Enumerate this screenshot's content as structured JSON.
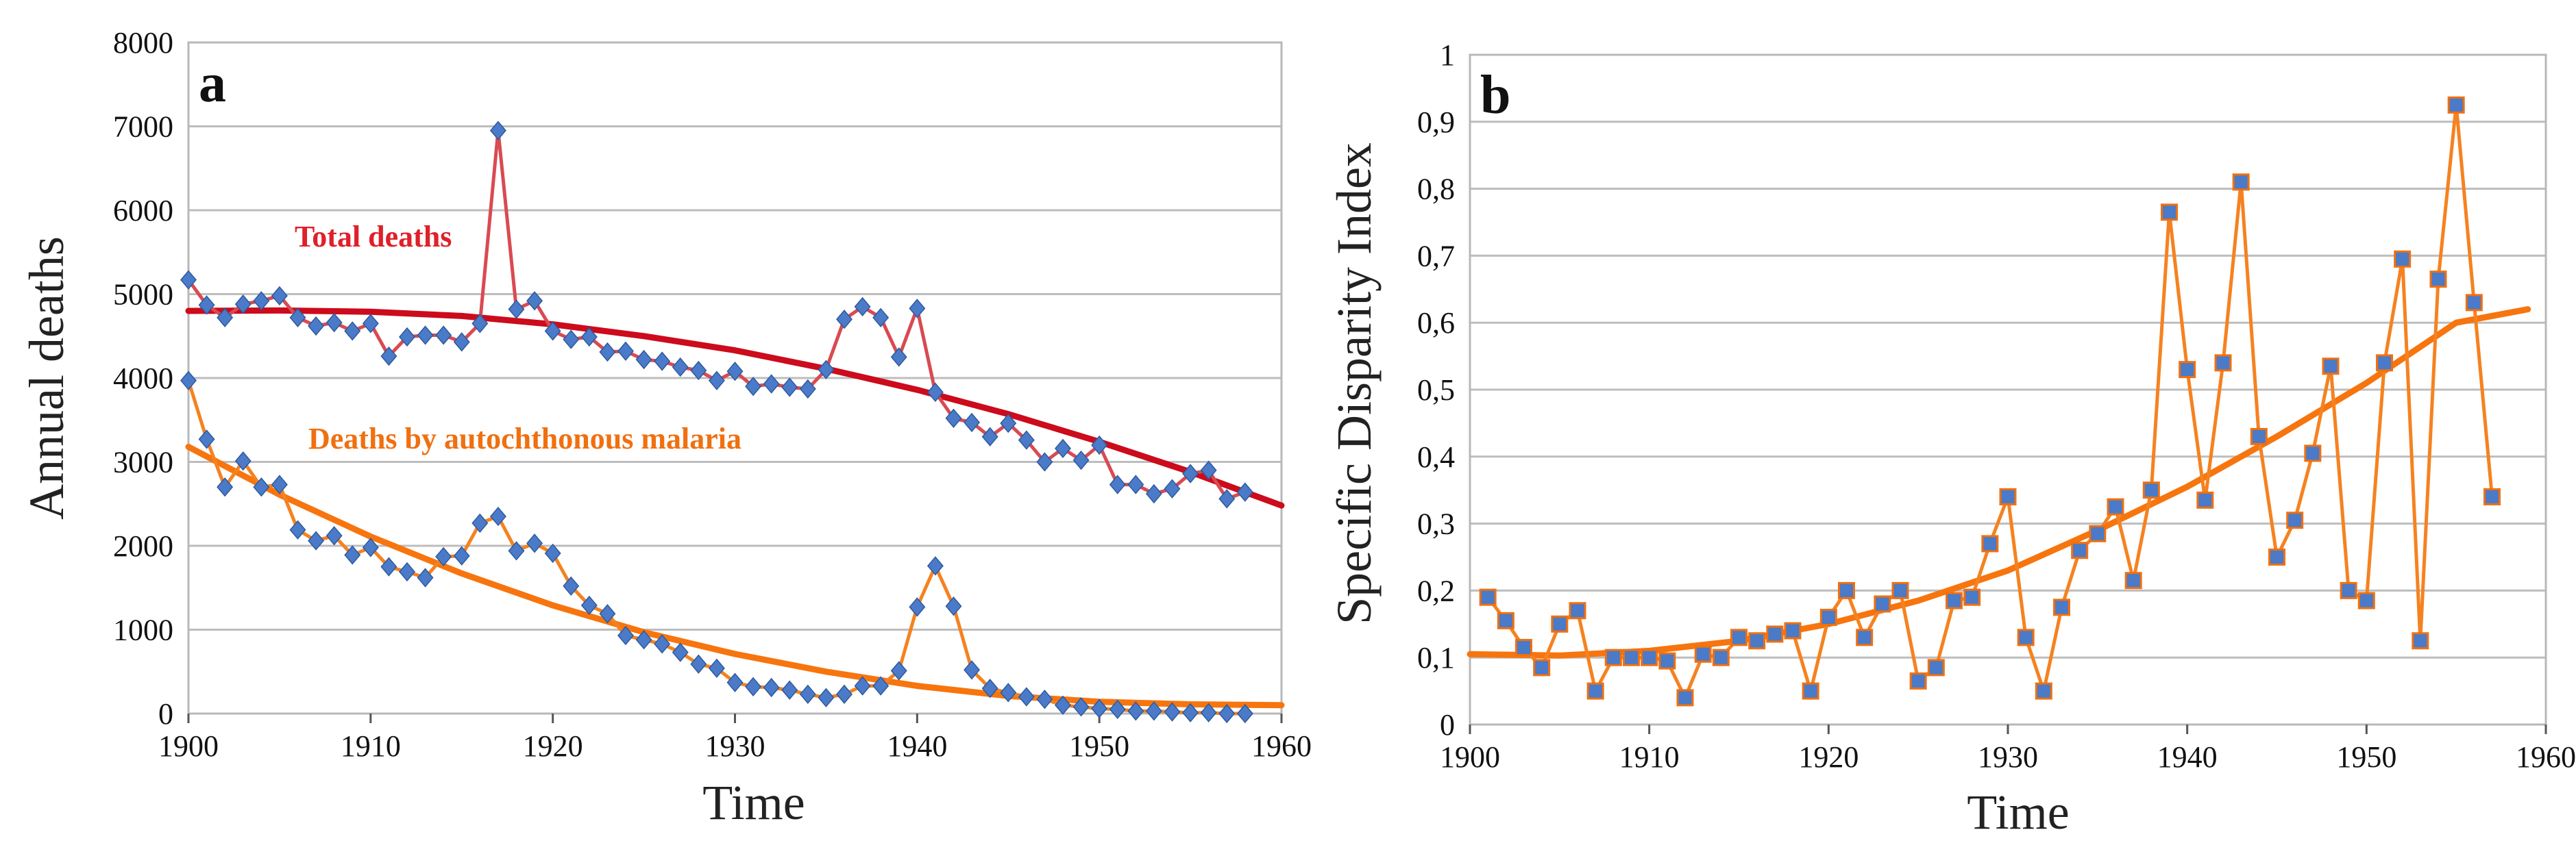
{
  "chart_data": [
    {
      "type": "line",
      "panel_label": "a",
      "xlabel": "Time",
      "ylabel": "Annual deaths",
      "xlim": [
        1900,
        1960
      ],
      "ylim": [
        0,
        8000
      ],
      "xticks": [
        "1900",
        "1910",
        "1920",
        "1930",
        "1940",
        "1950",
        "1960"
      ],
      "yticks": [
        "0",
        "1000",
        "2000",
        "3000",
        "4000",
        "5000",
        "6000",
        "7000",
        "8000"
      ],
      "grid": true,
      "annotations": [
        {
          "text": "Total deaths",
          "color": "#e0202a"
        },
        {
          "text": "Deaths by autochthonous malaria",
          "color": "#f07010"
        }
      ],
      "series": [
        {
          "name": "Total deaths",
          "color": "#d94a52",
          "marker_color": "#4a7ac8",
          "x": [
            1900,
            1901,
            1902,
            1903,
            1904,
            1905,
            1906,
            1907,
            1908,
            1909,
            1910,
            1911,
            1912,
            1913,
            1914,
            1915,
            1916,
            1917,
            1918,
            1919,
            1920,
            1921,
            1922,
            1923,
            1924,
            1925,
            1926,
            1927,
            1928,
            1929,
            1930,
            1931,
            1932,
            1933,
            1934,
            1935,
            1936,
            1937,
            1938,
            1939,
            1940,
            1941,
            1942,
            1943,
            1944,
            1945,
            1946,
            1947,
            1948,
            1949,
            1950,
            1951,
            1952,
            1953,
            1954,
            1955,
            1956,
            1957,
            1958
          ],
          "y": [
            5170,
            4870,
            4720,
            4880,
            4920,
            4980,
            4720,
            4620,
            4660,
            4560,
            4650,
            4260,
            4490,
            4510,
            4510,
            4430,
            4650,
            6950,
            4820,
            4920,
            4560,
            4460,
            4490,
            4310,
            4320,
            4220,
            4200,
            4130,
            4090,
            3970,
            4080,
            3900,
            3930,
            3890,
            3870,
            4100,
            4700,
            4850,
            4720,
            4250,
            4830,
            3830,
            3520,
            3470,
            3300,
            3460,
            3260,
            3000,
            3160,
            3020,
            3200,
            2730,
            2730,
            2620,
            2680,
            2860,
            2900,
            2560,
            2640
          ]
        },
        {
          "name": "Total deaths trend",
          "color": "#cc0b1c",
          "x": [
            1900,
            1905,
            1910,
            1915,
            1920,
            1925,
            1930,
            1935,
            1940,
            1945,
            1950,
            1955,
            1960
          ],
          "y": [
            4800,
            4805,
            4790,
            4740,
            4640,
            4500,
            4330,
            4110,
            3860,
            3570,
            3240,
            2880,
            2480
          ]
        },
        {
          "name": "Deaths by autochthonous malaria",
          "color": "#f58220",
          "marker_color": "#4a7ac8",
          "x": [
            1900,
            1901,
            1902,
            1903,
            1904,
            1905,
            1906,
            1907,
            1908,
            1909,
            1910,
            1911,
            1912,
            1913,
            1914,
            1915,
            1916,
            1917,
            1918,
            1919,
            1920,
            1921,
            1922,
            1923,
            1924,
            1925,
            1926,
            1927,
            1928,
            1929,
            1930,
            1931,
            1932,
            1933,
            1934,
            1935,
            1936,
            1937,
            1938,
            1939,
            1940,
            1941,
            1942,
            1943,
            1944,
            1945,
            1946,
            1947,
            1948,
            1949,
            1950,
            1951,
            1952,
            1953,
            1954,
            1955,
            1956,
            1957,
            1958
          ],
          "y": [
            3970,
            3270,
            2700,
            3010,
            2700,
            2730,
            2190,
            2060,
            2120,
            1890,
            1980,
            1750,
            1690,
            1620,
            1870,
            1880,
            2270,
            2350,
            1940,
            2030,
            1910,
            1520,
            1290,
            1190,
            930,
            880,
            830,
            730,
            590,
            540,
            370,
            320,
            310,
            280,
            230,
            190,
            230,
            330,
            330,
            510,
            1270,
            1760,
            1280,
            520,
            300,
            250,
            200,
            170,
            100,
            80,
            60,
            50,
            30,
            30,
            20,
            10,
            10,
            0,
            0
          ]
        },
        {
          "name": "Malaria deaths trend",
          "color": "#f7750e",
          "x": [
            1900,
            1905,
            1910,
            1915,
            1920,
            1925,
            1930,
            1935,
            1940,
            1945,
            1950,
            1955,
            1960
          ],
          "y": [
            3180,
            2610,
            2110,
            1670,
            1290,
            970,
            710,
            500,
            330,
            210,
            140,
            110,
            100
          ]
        }
      ]
    },
    {
      "type": "line",
      "panel_label": "b",
      "xlabel": "Time",
      "ylabel": "Specific Disparity Index",
      "xlim": [
        1900,
        1960
      ],
      "ylim": [
        0,
        1
      ],
      "xticks": [
        "1900",
        "1910",
        "1920",
        "1930",
        "1940",
        "1950",
        "1960"
      ],
      "yticks": [
        "0",
        "0,1",
        "0,2",
        "0,3",
        "0,4",
        "0,5",
        "0,6",
        "0,7",
        "0,8",
        "0,9",
        "1"
      ],
      "grid": true,
      "series": [
        {
          "name": "Specific Disparity Index",
          "color": "#f58220",
          "marker_color": "#4a7ac8",
          "x": [
            1901,
            1902,
            1903,
            1904,
            1905,
            1906,
            1907,
            1908,
            1909,
            1910,
            1911,
            1912,
            1913,
            1914,
            1915,
            1916,
            1917,
            1918,
            1919,
            1920,
            1921,
            1922,
            1923,
            1924,
            1925,
            1926,
            1927,
            1928,
            1929,
            1930,
            1931,
            1932,
            1933,
            1934,
            1935,
            1936,
            1937,
            1938,
            1939,
            1940,
            1941,
            1942,
            1943,
            1944,
            1945,
            1946,
            1947,
            1948,
            1949,
            1950,
            1951,
            1952,
            1953,
            1954,
            1955,
            1956,
            1957
          ],
          "y": [
            0.19,
            0.155,
            0.115,
            0.085,
            0.15,
            0.17,
            0.05,
            0.1,
            0.1,
            0.1,
            0.095,
            0.04,
            0.105,
            0.1,
            0.13,
            0.125,
            0.135,
            0.14,
            0.05,
            0.16,
            0.2,
            0.13,
            0.18,
            0.2,
            0.065,
            0.085,
            0.185,
            0.19,
            0.27,
            0.34,
            0.13,
            0.05,
            0.175,
            0.26,
            0.285,
            0.325,
            0.215,
            0.35,
            0.765,
            0.53,
            0.335,
            0.54,
            0.81,
            0.43,
            0.25,
            0.305,
            0.405,
            0.535,
            0.2,
            0.185,
            0.54,
            0.695,
            0.125,
            0.665,
            0.925,
            0.63,
            0.34
          ]
        },
        {
          "name": "Specific Disparity Index trend",
          "color": "#f7750e",
          "x": [
            1900,
            1905,
            1910,
            1915,
            1920,
            1925,
            1930,
            1935,
            1940,
            1945,
            1950,
            1955,
            1959
          ],
          "y": [
            0.105,
            0.103,
            0.11,
            0.125,
            0.15,
            0.185,
            0.23,
            0.29,
            0.355,
            0.43,
            0.51,
            0.6,
            0.62
          ]
        }
      ]
    }
  ]
}
